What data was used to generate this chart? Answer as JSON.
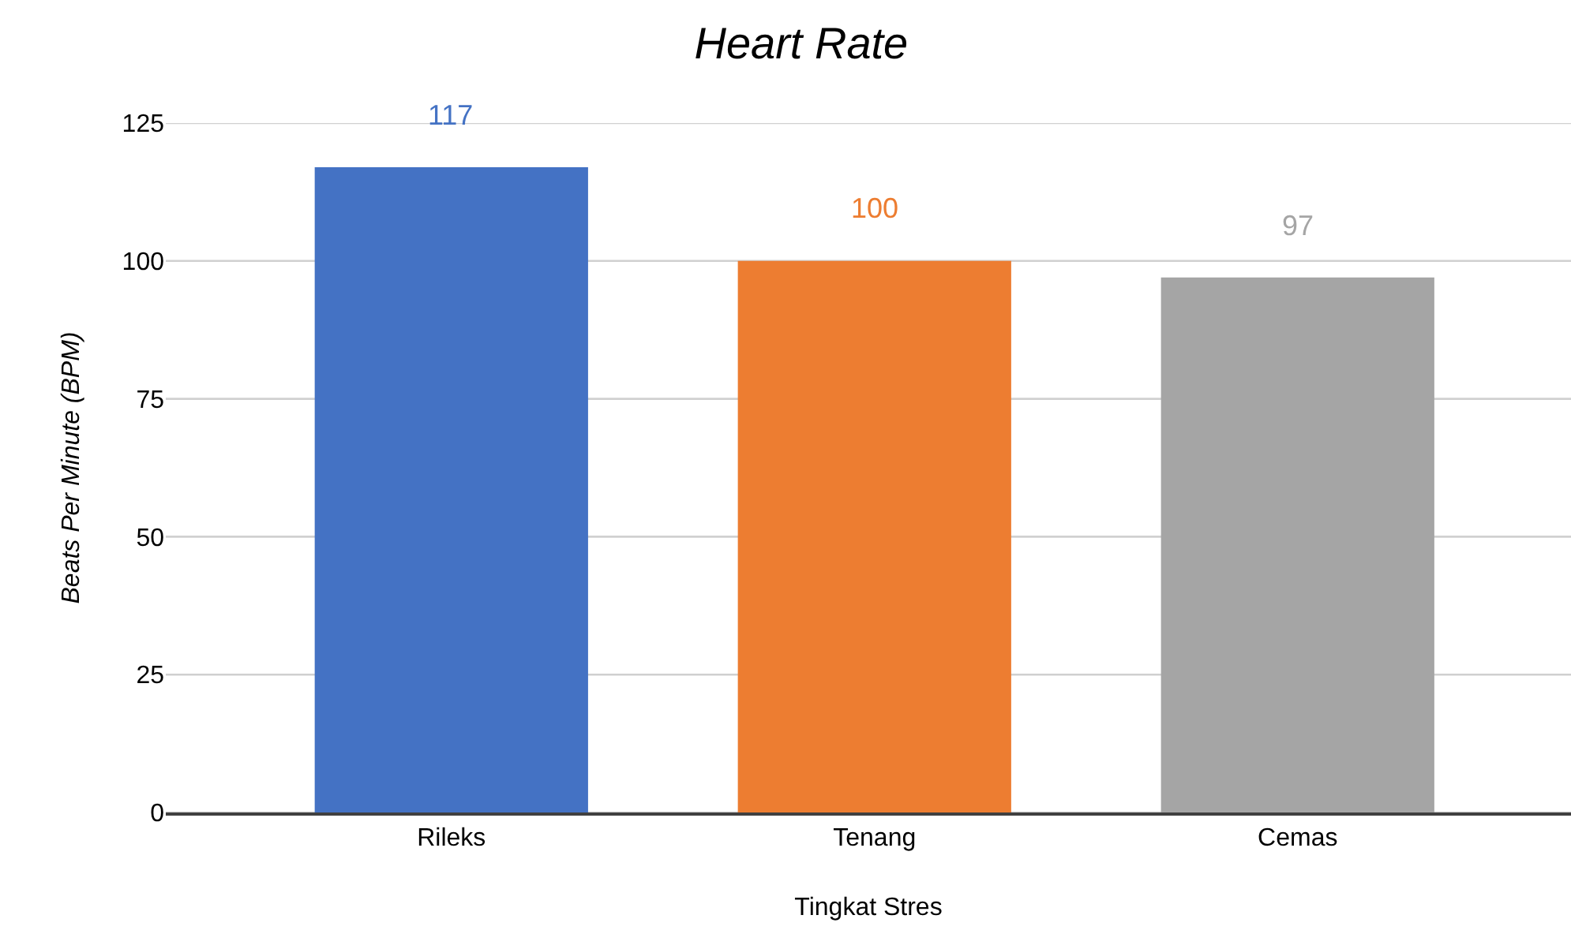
{
  "chart_data": {
    "type": "bar",
    "title": "Heart Rate",
    "xlabel": "Tingkat Stres",
    "ylabel": "Beats Per Minute (BPM)",
    "categories": [
      "Rileks",
      "Tenang",
      "Cemas"
    ],
    "values": [
      117,
      100,
      97
    ],
    "colors": [
      "#4472c4",
      "#ed7d31",
      "#a5a5a5"
    ],
    "ylim": [
      0,
      125
    ],
    "yticks": [
      0,
      25,
      50,
      75,
      100,
      125
    ],
    "grid": "y",
    "data_labels": true
  }
}
